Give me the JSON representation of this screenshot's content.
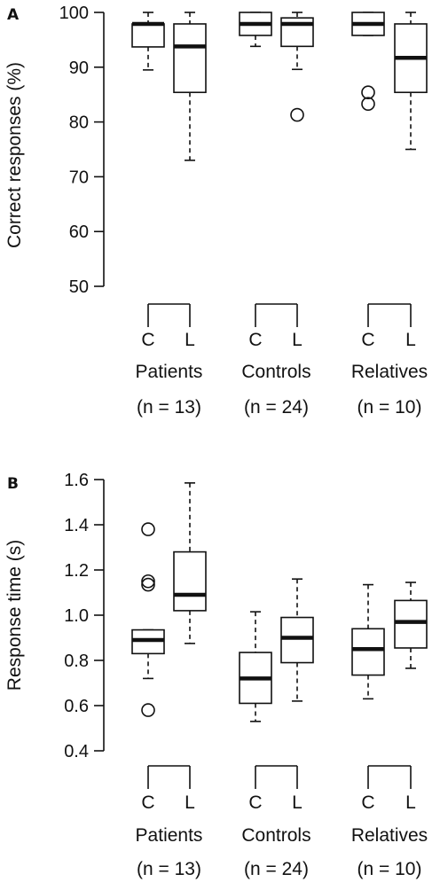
{
  "chart_data": [
    {
      "panel": "A",
      "type": "box",
      "ylabel": "Correct responses (%)",
      "ylim": [
        50,
        100
      ],
      "yticks": [
        50,
        60,
        70,
        80,
        90,
        100
      ],
      "conditions": [
        "C",
        "L"
      ],
      "groups": [
        {
          "name": "Patients",
          "n_label": "(n = 13)",
          "boxes": [
            {
              "condition": "C",
              "whisker_low": 89.5,
              "q1": 93.7,
              "median": 97.9,
              "q3": 97.9,
              "whisker_high": 100,
              "outliers": []
            },
            {
              "condition": "L",
              "whisker_low": 73,
              "q1": 85.4,
              "median": 93.8,
              "q3": 97.9,
              "whisker_high": 100,
              "outliers": []
            }
          ]
        },
        {
          "name": "Controls",
          "n_label": "(n = 24)",
          "boxes": [
            {
              "condition": "C",
              "whisker_low": 93.8,
              "q1": 95.8,
              "median": 97.9,
              "q3": 100,
              "whisker_high": 100,
              "outliers": []
            },
            {
              "condition": "L",
              "whisker_low": 89.6,
              "q1": 93.8,
              "median": 97.9,
              "q3": 99,
              "whisker_high": 100,
              "outliers": [
                81.3
              ]
            }
          ]
        },
        {
          "name": "Relatives",
          "n_label": "(n = 10)",
          "boxes": [
            {
              "condition": "C",
              "whisker_low": 95.8,
              "q1": 95.8,
              "median": 97.9,
              "q3": 100,
              "whisker_high": 100,
              "outliers": [
                85.4,
                83.3
              ]
            },
            {
              "condition": "L",
              "whisker_low": 75,
              "q1": 85.4,
              "median": 91.7,
              "q3": 97.9,
              "whisker_high": 100,
              "outliers": []
            }
          ]
        }
      ]
    },
    {
      "panel": "B",
      "type": "box",
      "ylabel": "Response time (s)",
      "ylim": [
        0.4,
        1.6
      ],
      "yticks": [
        0.4,
        0.6,
        0.8,
        1.0,
        1.2,
        1.4,
        1.6
      ],
      "ytick_labels": [
        "0.4",
        "0.6",
        "0.8",
        "1.0",
        "1.2",
        "1.4",
        "1.6"
      ],
      "conditions": [
        "C",
        "L"
      ],
      "groups": [
        {
          "name": "Patients",
          "n_label": "(n = 13)",
          "boxes": [
            {
              "condition": "C",
              "whisker_low": 0.72,
              "q1": 0.83,
              "median": 0.89,
              "q3": 0.935,
              "whisker_high": 0.935,
              "outliers": [
                1.38,
                1.15,
                1.135,
                0.58
              ]
            },
            {
              "condition": "L",
              "whisker_low": 0.875,
              "q1": 1.02,
              "median": 1.09,
              "q3": 1.28,
              "whisker_high": 1.585,
              "outliers": []
            }
          ]
        },
        {
          "name": "Controls",
          "n_label": "(n = 24)",
          "boxes": [
            {
              "condition": "C",
              "whisker_low": 0.53,
              "q1": 0.61,
              "median": 0.72,
              "q3": 0.835,
              "whisker_high": 1.015,
              "outliers": []
            },
            {
              "condition": "L",
              "whisker_low": 0.62,
              "q1": 0.79,
              "median": 0.9,
              "q3": 0.99,
              "whisker_high": 1.16,
              "outliers": []
            }
          ]
        },
        {
          "name": "Relatives",
          "n_label": "(n = 10)",
          "boxes": [
            {
              "condition": "C",
              "whisker_low": 0.63,
              "q1": 0.735,
              "median": 0.85,
              "q3": 0.94,
              "whisker_high": 1.135,
              "outliers": []
            },
            {
              "condition": "L",
              "whisker_low": 0.765,
              "q1": 0.855,
              "median": 0.97,
              "q3": 1.065,
              "whisker_high": 1.145,
              "outliers": []
            }
          ]
        }
      ]
    }
  ]
}
